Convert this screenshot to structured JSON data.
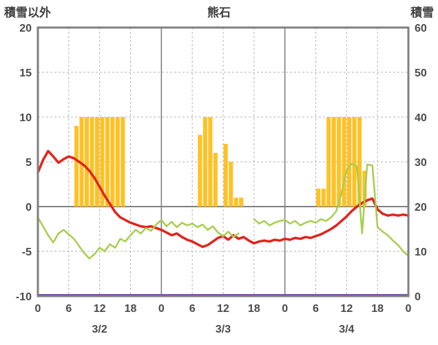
{
  "header": {
    "left_label": "積雪以外",
    "title": "熊石",
    "right_label": "積雪"
  },
  "colors": {
    "bar_orange": "#FFC125",
    "line_red": "#E2231A",
    "line_green": "#A6CE4E",
    "line_purple": "#7030A0",
    "frame_gray": "#808080",
    "grid_gray": "#b3b3b3",
    "tick_text": "#4a4a4a"
  },
  "chart_data": {
    "type": "line",
    "title": "熊石",
    "left_axis": {
      "label": "積雪以外",
      "min": -10,
      "max": 20,
      "ticks": [
        20,
        15,
        10,
        5,
        0,
        -5,
        -10
      ]
    },
    "right_axis": {
      "label": "積雪",
      "min": 0,
      "max": 60,
      "ticks": [
        60,
        50,
        40,
        30,
        20,
        10,
        0
      ]
    },
    "x_axis": {
      "hours_total": 72,
      "tick_step_hours": 6,
      "hour_tick_labels": [
        "0",
        "6",
        "12",
        "18",
        "0",
        "6",
        "12",
        "18",
        "0",
        "6",
        "12",
        "18",
        "0"
      ],
      "day_labels": [
        "3/2",
        "3/3",
        "3/4"
      ]
    },
    "grid": {
      "horizontal_dashed": [
        15,
        10,
        5,
        -5
      ],
      "zero_line": 0,
      "day_boundaries_hours": [
        24,
        48
      ]
    },
    "series": [
      {
        "name": "orange-bars",
        "type": "bar",
        "axis": "left",
        "color": "#FFC125",
        "values": [
          0,
          0,
          0,
          0,
          0,
          0,
          0,
          9,
          10,
          10,
          10,
          10,
          10,
          10,
          10,
          10,
          10,
          0,
          0,
          0,
          0,
          0,
          0,
          0,
          0,
          0,
          0,
          0,
          0,
          0,
          0,
          8,
          10,
          10,
          6,
          0,
          7,
          5,
          1,
          1,
          0,
          0,
          0,
          0,
          0,
          0,
          0,
          0,
          0,
          0,
          0,
          0,
          0,
          0,
          2,
          2,
          10,
          10,
          10,
          10,
          10,
          10,
          10,
          4,
          0,
          0,
          0,
          0,
          0,
          0,
          0,
          0
        ]
      },
      {
        "name": "red-line",
        "type": "line",
        "axis": "left",
        "color": "#E2231A",
        "width": 3.5,
        "values": [
          3.8,
          5.2,
          6.2,
          5.6,
          4.9,
          5.3,
          5.6,
          5.4,
          5.0,
          4.6,
          4.0,
          3.2,
          2.2,
          1.2,
          0.3,
          -0.6,
          -1.2,
          -1.5,
          -1.8,
          -2.0,
          -2.2,
          -2.3,
          -2.2,
          -2.4,
          -2.6,
          -2.9,
          -3.2,
          -3.0,
          -3.4,
          -3.7,
          -3.9,
          -4.2,
          -4.5,
          -4.3,
          -3.9,
          -3.5,
          -3.3,
          -3.7,
          -3.2,
          -3.6,
          -3.4,
          -3.8,
          -4.1,
          -3.9,
          -3.8,
          -3.9,
          -3.7,
          -3.8,
          -3.6,
          -3.7,
          -3.5,
          -3.6,
          -3.4,
          -3.5,
          -3.3,
          -3.1,
          -2.8,
          -2.5,
          -2.1,
          -1.6,
          -1.1,
          -0.5,
          0.0,
          0.4,
          0.7,
          0.9,
          -0.3,
          -0.8,
          -1.0,
          -0.9,
          -1.0,
          -0.9,
          -1.0
        ]
      },
      {
        "name": "green-line",
        "type": "line",
        "axis": "left",
        "color": "#A6CE4E",
        "width": 2.5,
        "values": [
          -1.2,
          -2.2,
          -3.2,
          -4.0,
          -3.0,
          -2.6,
          -3.1,
          -3.6,
          -4.4,
          -5.2,
          -5.8,
          -5.3,
          -4.6,
          -5.0,
          -4.2,
          -4.6,
          -3.6,
          -3.9,
          -3.2,
          -2.6,
          -3.0,
          -2.4,
          -2.7,
          -2.0,
          -1.5,
          -2.2,
          -1.7,
          -2.3,
          -1.8,
          -2.1,
          -1.9,
          -2.3,
          -2.0,
          -2.6,
          -2.2,
          -2.9,
          -3.3,
          -2.8,
          -3.4,
          -3.0,
          null,
          null,
          -1.4,
          -1.9,
          -1.6,
          -2.1,
          -1.8,
          -1.6,
          -1.5,
          -1.9,
          -1.6,
          -2.1,
          -1.8,
          -1.6,
          -1.8,
          -1.4,
          -1.6,
          -1.2,
          -0.5,
          1.5,
          4.0,
          4.8,
          4.5,
          -3.0,
          4.7,
          4.6,
          -2.3,
          -2.8,
          -3.2,
          -3.8,
          -4.3,
          -5.0,
          -5.5
        ]
      },
      {
        "name": "purple-line",
        "type": "constant-line",
        "axis": "right",
        "color": "#7030A0",
        "width": 2.5,
        "constant": 0
      }
    ]
  }
}
